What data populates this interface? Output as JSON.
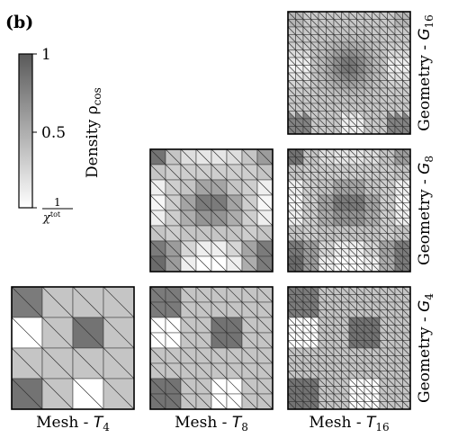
{
  "panel_label": "(b)",
  "colorbar": {
    "title": "Density ρ",
    "title_sub": "cos",
    "tick_top": "1",
    "tick_mid": "0.5",
    "tick_bottom_num": "1",
    "tick_bottom_den": "χ",
    "tick_bottom_den_sup": "tot",
    "color_low": "#ffffff",
    "color_high": "#5a5a5a"
  },
  "columns": [
    {
      "prefix": "Mesh - ",
      "sym": "T",
      "sub": "4"
    },
    {
      "prefix": "Mesh - ",
      "sym": "T",
      "sub": "8"
    },
    {
      "prefix": "Mesh - ",
      "sym": "T",
      "sub": "16"
    }
  ],
  "rows": [
    {
      "prefix": "Geometry - ",
      "sym": "G",
      "sub": "16"
    },
    {
      "prefix": "Geometry - ",
      "sym": "G",
      "sub": "8"
    },
    {
      "prefix": "Geometry - ",
      "sym": "G",
      "sub": "4"
    }
  ],
  "density_fields": {
    "g4": [
      [
        0.8,
        0.35,
        0.35,
        0.35
      ],
      [
        0.0,
        0.35,
        0.85,
        0.35
      ],
      [
        0.35,
        0.35,
        0.35,
        0.35
      ],
      [
        0.85,
        0.35,
        0.0,
        0.35
      ]
    ],
    "g8": [
      [
        0.85,
        0.35,
        0.2,
        0.15,
        0.15,
        0.2,
        0.35,
        0.6
      ],
      [
        0.35,
        0.3,
        0.3,
        0.3,
        0.3,
        0.3,
        0.3,
        0.35
      ],
      [
        0.1,
        0.3,
        0.35,
        0.55,
        0.55,
        0.35,
        0.3,
        0.1
      ],
      [
        0.05,
        0.3,
        0.55,
        0.8,
        0.8,
        0.55,
        0.3,
        0.05
      ],
      [
        0.1,
        0.3,
        0.5,
        0.65,
        0.65,
        0.5,
        0.3,
        0.1
      ],
      [
        0.35,
        0.3,
        0.35,
        0.35,
        0.35,
        0.35,
        0.3,
        0.35
      ],
      [
        0.8,
        0.6,
        0.25,
        0.1,
        0.1,
        0.25,
        0.55,
        0.8
      ],
      [
        0.9,
        0.6,
        0.1,
        0.0,
        0.0,
        0.1,
        0.5,
        0.8
      ]
    ]
  }
}
